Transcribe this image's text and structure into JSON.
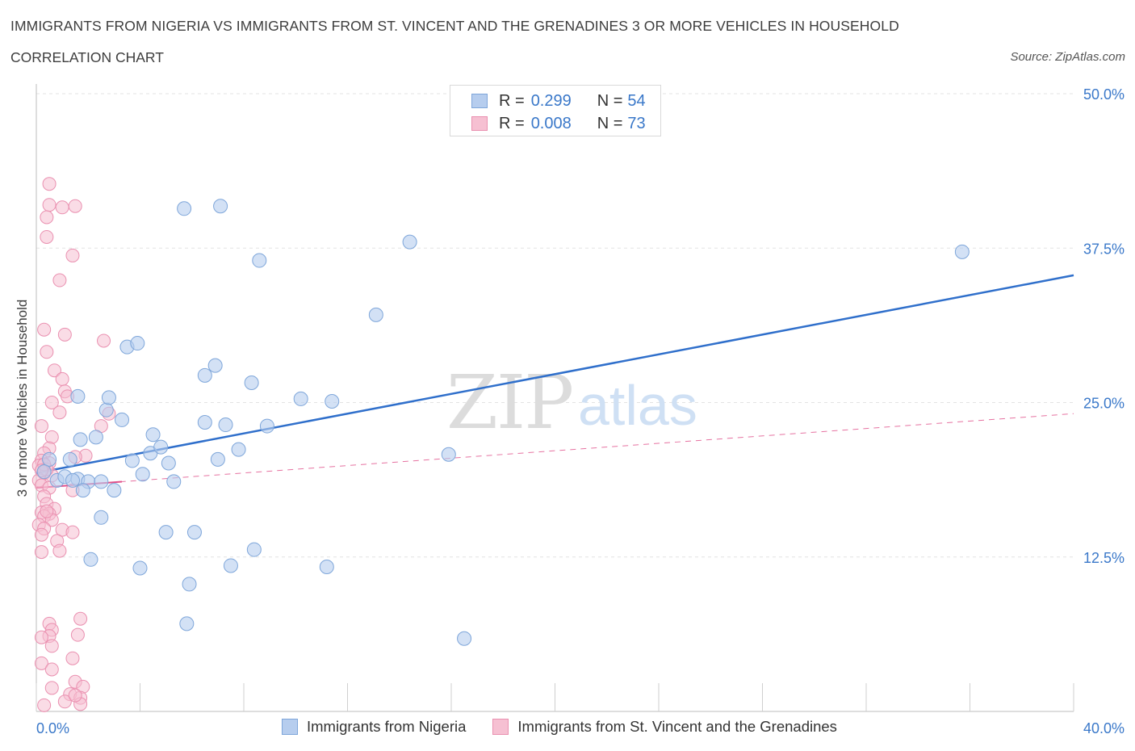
{
  "header": {
    "title": "IMMIGRANTS FROM NIGERIA VS IMMIGRANTS FROM ST. VINCENT AND THE GRENADINES 3 OR MORE VEHICLES IN HOUSEHOLD",
    "subtitle": "CORRELATION CHART",
    "source": "Source: ZipAtlas.com"
  },
  "legend": {
    "r_label": "R =",
    "n_label": "N =",
    "rows": [
      {
        "r": "0.299",
        "n": "54"
      },
      {
        "r": "0.008",
        "n": "73"
      }
    ]
  },
  "colors": {
    "blue_fill": "#b6cdee",
    "blue_stroke": "#7ea6da",
    "blue_line": "#2f6fcb",
    "pink_fill": "#f6c0d2",
    "pink_stroke": "#ea90b0",
    "pink_line": "#e0508a",
    "axis_label": "#3a78c9",
    "grid": "#e3e3e3"
  },
  "watermark": {
    "part1": "ZIP",
    "part2": "atlas"
  },
  "chart_data": {
    "type": "scatter",
    "title": "IMMIGRANTS FROM NIGERIA VS IMMIGRANTS FROM ST. VINCENT AND THE GRENADINES 3 OR MORE VEHICLES IN HOUSEHOLD",
    "xlabel": "",
    "ylabel": "3 or more Vehicles in Household",
    "xlim": [
      0,
      40
    ],
    "ylim": [
      0,
      50
    ],
    "x_tick_labels": [
      "0.0%",
      "40.0%"
    ],
    "y_ticks": [
      12.5,
      25,
      37.5,
      50
    ],
    "y_tick_labels": [
      "12.5%",
      "25.0%",
      "37.5%",
      "50.0%"
    ],
    "grid": "horizontal dashed",
    "legend_position": "top-center",
    "series": [
      {
        "name": "Immigrants from Nigeria",
        "color": "blue",
        "r": 0.299,
        "n": 54,
        "trend": {
          "x": [
            0,
            40
          ],
          "y": [
            19.3,
            35.3
          ],
          "style": "solid"
        },
        "points": [
          [
            0.5,
            20.4
          ],
          [
            0.3,
            19.4
          ],
          [
            0.8,
            18.7
          ],
          [
            1.1,
            19.0
          ],
          [
            1.6,
            18.8
          ],
          [
            2.0,
            18.6
          ],
          [
            2.5,
            18.6
          ],
          [
            1.3,
            20.4
          ],
          [
            1.7,
            22.0
          ],
          [
            2.3,
            22.2
          ],
          [
            2.7,
            24.4
          ],
          [
            2.8,
            25.4
          ],
          [
            1.6,
            25.5
          ],
          [
            3.3,
            23.6
          ],
          [
            3.7,
            20.3
          ],
          [
            4.1,
            19.2
          ],
          [
            4.4,
            20.9
          ],
          [
            4.8,
            21.4
          ],
          [
            5.1,
            20.1
          ],
          [
            4.5,
            22.4
          ],
          [
            3.5,
            29.5
          ],
          [
            3.9,
            29.8
          ],
          [
            5.7,
            40.7
          ],
          [
            7.1,
            40.9
          ],
          [
            6.5,
            27.2
          ],
          [
            6.9,
            28.0
          ],
          [
            6.5,
            23.4
          ],
          [
            7.3,
            23.2
          ],
          [
            7.8,
            21.2
          ],
          [
            7.0,
            20.4
          ],
          [
            8.3,
            26.6
          ],
          [
            8.6,
            36.5
          ],
          [
            8.9,
            23.1
          ],
          [
            10.2,
            25.3
          ],
          [
            11.4,
            25.1
          ],
          [
            13.1,
            32.1
          ],
          [
            14.4,
            38.0
          ],
          [
            15.9,
            20.8
          ],
          [
            35.7,
            37.2
          ],
          [
            3.0,
            17.9
          ],
          [
            1.8,
            17.9
          ],
          [
            2.5,
            15.7
          ],
          [
            5.0,
            14.5
          ],
          [
            6.1,
            14.5
          ],
          [
            8.4,
            13.1
          ],
          [
            7.5,
            11.8
          ],
          [
            4.0,
            11.6
          ],
          [
            2.1,
            12.3
          ],
          [
            11.2,
            11.7
          ],
          [
            5.9,
            10.3
          ],
          [
            5.8,
            7.1
          ],
          [
            16.5,
            5.9
          ],
          [
            5.3,
            18.6
          ],
          [
            1.4,
            18.7
          ]
        ]
      },
      {
        "name": "Immigrants from St. Vincent and the Grenadines",
        "color": "pink",
        "r": 0.008,
        "n": 73,
        "trend": {
          "x": [
            0,
            40
          ],
          "y": [
            18.1,
            24.1
          ],
          "style": "dashed",
          "solid_until_x": 3.3
        },
        "points": [
          [
            0.5,
            42.7
          ],
          [
            1.5,
            40.9
          ],
          [
            0.5,
            41.0
          ],
          [
            1.0,
            40.8
          ],
          [
            0.4,
            40.0
          ],
          [
            0.4,
            38.4
          ],
          [
            1.4,
            36.9
          ],
          [
            0.9,
            34.9
          ],
          [
            0.3,
            30.9
          ],
          [
            1.1,
            30.5
          ],
          [
            2.6,
            30.0
          ],
          [
            0.4,
            29.1
          ],
          [
            0.7,
            27.6
          ],
          [
            1.0,
            26.9
          ],
          [
            1.1,
            25.9
          ],
          [
            1.2,
            25.5
          ],
          [
            0.6,
            25.0
          ],
          [
            0.9,
            24.2
          ],
          [
            2.8,
            24.1
          ],
          [
            2.5,
            23.1
          ],
          [
            0.2,
            23.1
          ],
          [
            0.6,
            22.2
          ],
          [
            0.5,
            21.3
          ],
          [
            0.3,
            20.9
          ],
          [
            1.9,
            20.7
          ],
          [
            1.5,
            20.6
          ],
          [
            0.2,
            20.3
          ],
          [
            0.5,
            20.1
          ],
          [
            0.1,
            19.9
          ],
          [
            0.3,
            19.3
          ],
          [
            0.6,
            19.1
          ],
          [
            0.1,
            18.7
          ],
          [
            0.2,
            18.3
          ],
          [
            0.5,
            18.1
          ],
          [
            1.4,
            17.9
          ],
          [
            0.3,
            17.4
          ],
          [
            0.4,
            16.8
          ],
          [
            0.7,
            16.4
          ],
          [
            0.2,
            16.1
          ],
          [
            0.5,
            16.0
          ],
          [
            0.3,
            15.8
          ],
          [
            0.6,
            15.5
          ],
          [
            0.1,
            15.1
          ],
          [
            0.3,
            14.8
          ],
          [
            1.0,
            14.7
          ],
          [
            1.4,
            14.5
          ],
          [
            0.2,
            14.3
          ],
          [
            0.8,
            13.8
          ],
          [
            0.9,
            13.0
          ],
          [
            0.2,
            12.9
          ],
          [
            1.7,
            7.5
          ],
          [
            0.5,
            7.1
          ],
          [
            0.6,
            6.6
          ],
          [
            1.6,
            6.2
          ],
          [
            0.5,
            6.1
          ],
          [
            0.2,
            6.0
          ],
          [
            0.6,
            5.3
          ],
          [
            1.4,
            4.3
          ],
          [
            0.2,
            3.9
          ],
          [
            0.6,
            3.4
          ],
          [
            1.5,
            2.4
          ],
          [
            1.8,
            2.0
          ],
          [
            0.6,
            1.9
          ],
          [
            1.3,
            1.4
          ],
          [
            1.7,
            1.1
          ],
          [
            1.1,
            0.8
          ],
          [
            1.7,
            0.6
          ],
          [
            0.3,
            0.5
          ],
          [
            1.5,
            1.3
          ],
          [
            0.4,
            19.6
          ],
          [
            0.3,
            20.0
          ],
          [
            0.4,
            16.2
          ],
          [
            0.2,
            19.5
          ]
        ]
      }
    ]
  },
  "bottom_legend": {
    "items": [
      "Immigrants from Nigeria",
      "Immigrants from St. Vincent and the Grenadines"
    ]
  }
}
